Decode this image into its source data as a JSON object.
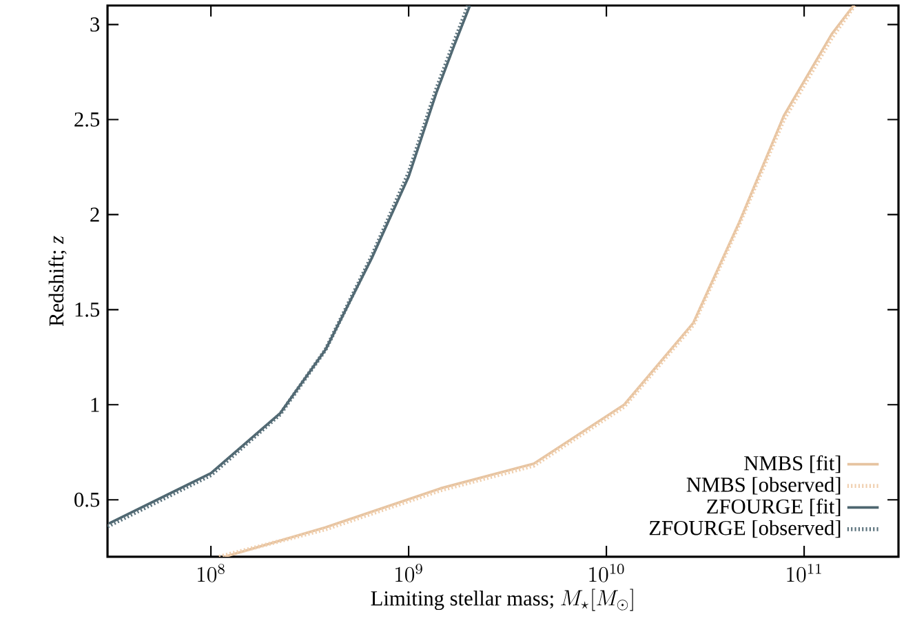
{
  "chart_data": {
    "type": "line",
    "xlabel": "\\mbox{Limiting stellar mass; }M_\\star[M_\\odot]",
    "ylabel": "Redshift; *z*",
    "log": "x",
    "legend": "bottom right",
    "grid": false,
    "marker": "none",
    "xlim": [
      30000000.0,
      300000000000.0
    ],
    "ylim": [
      0.2,
      3.1
    ],
    "xticks": [
      {
        "value": 100000000.0,
        "label": "10^{8}"
      },
      {
        "value": 1000000000.0,
        "label": "10^{9}"
      },
      {
        "value": 10000000000.0,
        "label": "10^{10}"
      },
      {
        "value": 100000000000.0,
        "label": "10^{11}"
      }
    ],
    "yticks": [
      0.5,
      1,
      1.5,
      2,
      2.5,
      3
    ],
    "series": [
      {
        "name": "NMBS [fit]",
        "color": "#e6c3a0",
        "line_style": "solid",
        "x": [
          117000000.0,
          380000000.0,
          1450000000.0,
          4300000000.0,
          12300000000.0,
          27500000000.0,
          47000000000.0,
          79000000000.0,
          138000000000.0,
          178000000000.0
        ],
        "values": [
          0.2,
          0.355,
          0.56,
          0.69,
          1.0,
          1.43,
          1.96,
          2.52,
          2.95,
          3.1
        ]
      },
      {
        "name": "NMBS [observed]",
        "color": "#f0cfae",
        "line_style": "dotted",
        "x": [
          110000000.0,
          380000000.0,
          1450000000.0,
          4300000000.0,
          12300000000.0,
          27500000000.0,
          47000000000.0,
          79000000000.0,
          138000000000.0,
          180000000000.0
        ],
        "values": [
          0.2,
          0.345,
          0.55,
          0.68,
          0.99,
          1.42,
          1.95,
          2.5,
          2.93,
          3.1
        ]
      },
      {
        "name": "ZFOURGE [fit]",
        "color": "#4e6670",
        "line_style": "solid",
        "x": [
          30500000.0,
          100000000.0,
          224000000.0,
          380000000.0,
          650000000.0,
          1000000000.0,
          1380000000.0,
          1700000000.0,
          2040000000.0
        ],
        "values": [
          0.375,
          0.64,
          0.955,
          1.29,
          1.77,
          2.2,
          2.64,
          2.89,
          3.1
        ]
      },
      {
        "name": "ZFOURGE [observed]",
        "color": "#5a717b",
        "line_style": "dotted",
        "x": [
          30000000.0,
          100000000.0,
          224000000.0,
          380000000.0,
          650000000.0,
          1000000000.0,
          1380000000.0,
          1700000000.0,
          2000000000.0
        ],
        "values": [
          0.36,
          0.63,
          0.95,
          1.29,
          1.78,
          2.22,
          2.66,
          2.91,
          3.1
        ]
      }
    ]
  }
}
